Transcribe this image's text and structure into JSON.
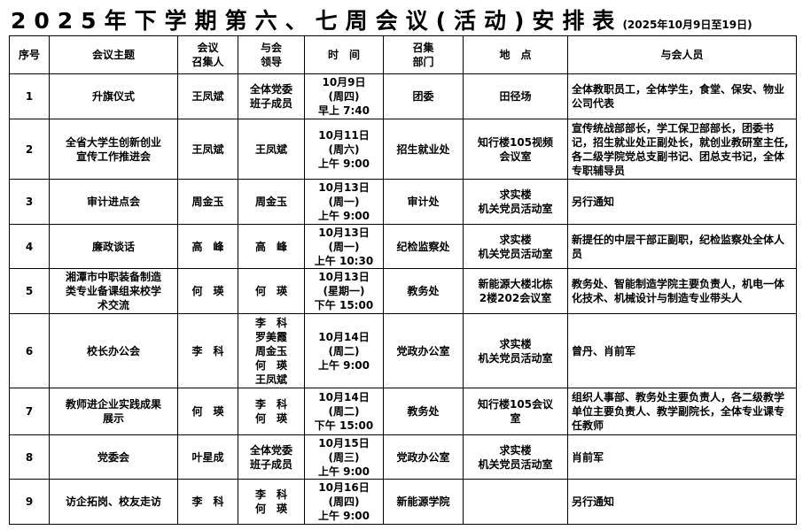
{
  "title": {
    "main": "2025年下学期第六、七周会议(活动)安排表",
    "sub": "(2025年10月9日至19日)"
  },
  "headers": [
    "序号",
    "会议主题",
    "会议\n召集人",
    "与会\n领导",
    "时　间",
    "召集\n部门",
    "地　点",
    "与会人员"
  ],
  "rows": [
    {
      "no": "1",
      "topic": "升旗仪式",
      "convener": "王凤斌",
      "leaders": "全体党委\n班子成员",
      "time": "10月9日\n(周四)\n早上 7:40",
      "dept": "团委",
      "place": "田径场",
      "attendees": "全体教职员工，全体学生，食堂、保安、物业公司代表"
    },
    {
      "no": "2",
      "topic": "全省大学生创新创业\n宣传工作推进会",
      "convener": "王凤斌",
      "leaders": "王凤斌",
      "time": "10月11日\n(周六)\n上午 9:00",
      "dept": "招生就业处",
      "place": "知行楼105视频\n会议室",
      "attendees": "宣传统战部部长，学工保卫部部长，团委书记，招生就业处正副处长，就创业教研室主任,各二级学院党总支副书记、团总支书记，全体专职辅导员"
    },
    {
      "no": "3",
      "topic": "审计进点会",
      "convener": "周金玉",
      "leaders": "周金玉",
      "time": "10月13日\n(周一)\n上午 9:00",
      "dept": "审计处",
      "place": "求实楼\n机关党员活动室",
      "attendees": "另行通知"
    },
    {
      "no": "4",
      "topic": "廉政谈话",
      "convener": "高　峰",
      "leaders": "高　峰",
      "time": "10月13日\n(周一)\n上午 10:30",
      "dept": "纪检监察处",
      "place": "求实楼\n机关党员活动室",
      "attendees": "新提任的中层干部正副职，纪检监察处全体人员"
    },
    {
      "no": "5",
      "topic": "湘潭市中职装备制造\n类专业备课组来校学\n术交流",
      "convener": "何　瑛",
      "leaders": "何　瑛",
      "time": "10月13日\n(星期一)\n下午 15:00",
      "dept": "教务处",
      "place": "新能源大楼北栋\n2楼202会议室",
      "attendees": "教务处、智能制造学院主要负责人，机电一体化技术、机械设计与制造专业带头人"
    },
    {
      "no": "6",
      "topic": "校长办公会",
      "convener": "李　科",
      "leaders": "李　科\n罗美霞\n周金玉\n何　瑛\n王凤斌",
      "time": "10月14日\n(周二)\n上午 9:00",
      "dept": "党政办公室",
      "place": "求实楼\n机关党员活动室",
      "attendees": "曾丹、肖前军"
    },
    {
      "no": "7",
      "topic": "教师进企业实践成果\n展示",
      "convener": "何　瑛",
      "leaders": "李　科\n何　瑛",
      "time": "10月14日\n(周二)\n下午 15:00",
      "dept": "教务处",
      "place": "知行楼105会议\n室",
      "attendees": "组织人事部、教务处主要负责人，各二级教学单位主要负责人、教学副院长，全体专业课专任教师"
    },
    {
      "no": "8",
      "topic": "党委会",
      "convener": "叶星成",
      "leaders": "全体党委\n班子成员",
      "time": "10月15日\n(周三)\n上午 9:00",
      "dept": "党政办公室",
      "place": "求实楼\n机关党员活动室",
      "attendees": "肖前军"
    },
    {
      "no": "9",
      "topic": "访企拓岗、校友走访",
      "convener": "李　科",
      "leaders": "李　科\n何　瑛",
      "time": "10月16日\n(周四)\n上午 9:00",
      "dept": "新能源学院",
      "place": "",
      "attendees": "另行通知"
    }
  ]
}
